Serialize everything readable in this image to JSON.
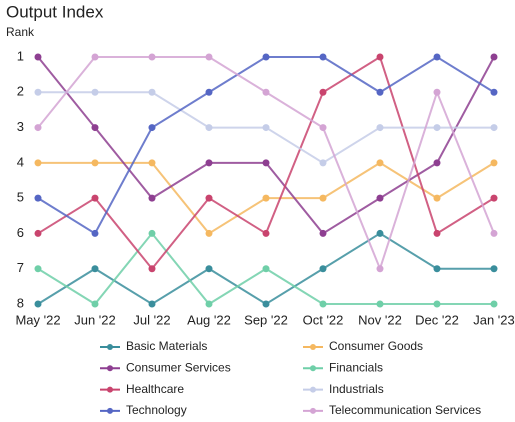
{
  "chart_data": {
    "type": "bump",
    "title": "Output Index",
    "y_label": "Rank",
    "categories": [
      "May '22",
      "Jun '22",
      "Jul '22",
      "Aug '22",
      "Sep '22",
      "Oct '22",
      "Nov '22",
      "Dec '22",
      "Jan '23"
    ],
    "ylim": [
      8,
      1
    ],
    "yticks": [
      1,
      2,
      3,
      4,
      5,
      6,
      7,
      8
    ],
    "series": [
      {
        "name": "Basic Materials",
        "color": "#3a8e9c",
        "values": [
          8,
          7,
          8,
          7,
          8,
          7,
          6,
          7,
          7
        ]
      },
      {
        "name": "Consumer Goods",
        "color": "#f5b860",
        "values": [
          4,
          4,
          4,
          6,
          5,
          5,
          4,
          5,
          4
        ]
      },
      {
        "name": "Consumer Services",
        "color": "#8e3f91",
        "values": [
          1,
          3,
          5,
          4,
          4,
          6,
          5,
          4,
          1
        ]
      },
      {
        "name": "Financials",
        "color": "#6fcfa8",
        "values": [
          7,
          8,
          6,
          8,
          7,
          8,
          8,
          8,
          8
        ]
      },
      {
        "name": "Healthcare",
        "color": "#c9446e",
        "values": [
          6,
          5,
          7,
          5,
          6,
          2,
          1,
          6,
          5
        ]
      },
      {
        "name": "Industrials",
        "color": "#c5cde8",
        "values": [
          2,
          2,
          2,
          3,
          3,
          4,
          3,
          3,
          3
        ]
      },
      {
        "name": "Technology",
        "color": "#5566c4",
        "values": [
          5,
          6,
          3,
          2,
          1,
          1,
          2,
          1,
          2
        ]
      },
      {
        "name": "Telecommunication Services",
        "color": "#d4a4d4",
        "values": [
          3,
          1,
          1,
          1,
          2,
          3,
          7,
          2,
          6
        ]
      }
    ]
  }
}
